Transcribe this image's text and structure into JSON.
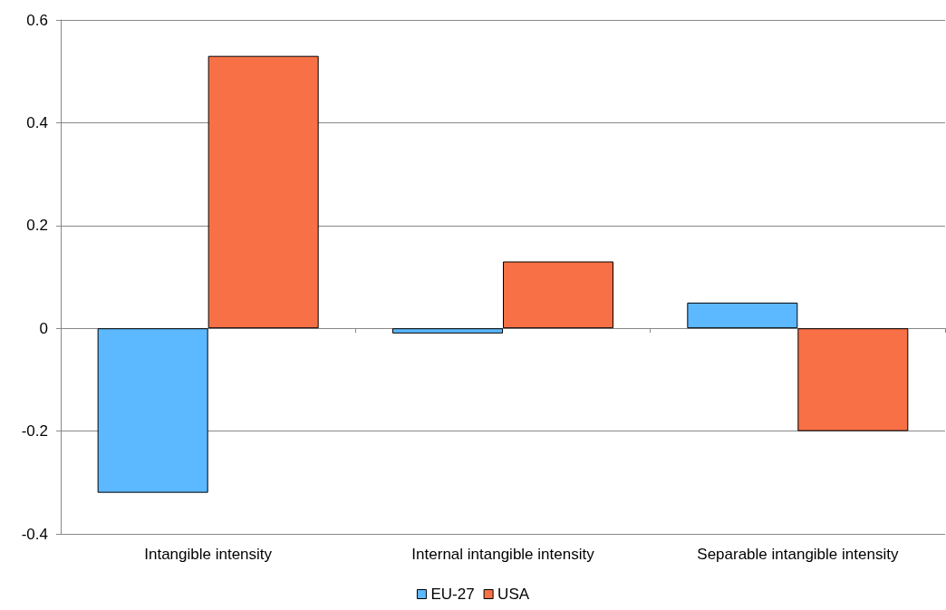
{
  "chart_data": {
    "type": "bar",
    "categories": [
      "Intangible intensity",
      "Internal intangible intensity",
      "Separable intangible intensity"
    ],
    "series": [
      {
        "name": "EU-27",
        "color": "#5cb8ff",
        "values": [
          -0.32,
          -0.01,
          0.05
        ]
      },
      {
        "name": "USA",
        "color": "#f87046",
        "values": [
          0.53,
          0.13,
          -0.2
        ]
      }
    ],
    "ylim": [
      -0.4,
      0.6
    ],
    "yticks": [
      -0.4,
      -0.2,
      0,
      0.2,
      0.4,
      0.6
    ],
    "grid": "y",
    "legend": "bottom"
  }
}
